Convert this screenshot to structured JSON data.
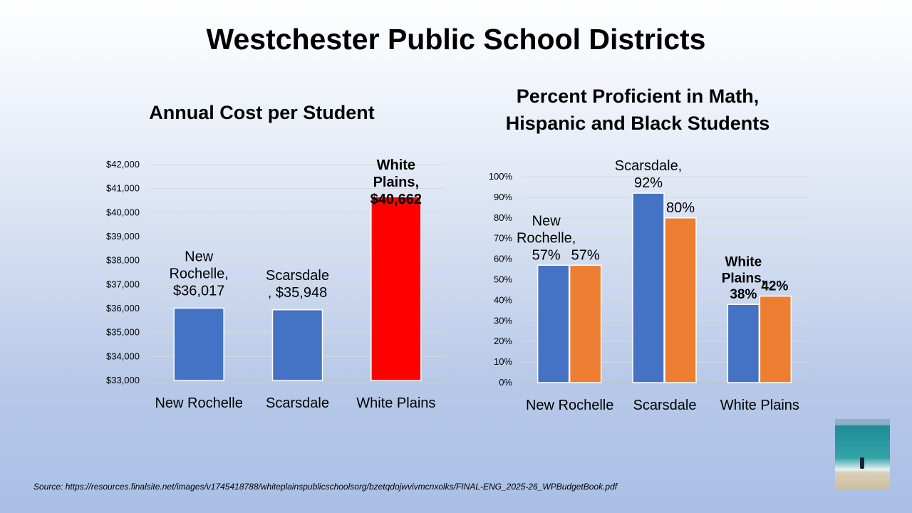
{
  "title": "Westchester Public School Districts",
  "source": "Source: https://resources.finalsite.net/images/v1745418788/whiteplainspublicschoolsorg/bzetqdojwvivmcnxolks/FINAL-ENG_2025-26_WPBudgetBook.pdf",
  "chart_data": [
    {
      "type": "bar",
      "title": "Annual Cost per Student",
      "categories": [
        "New Rochelle",
        "Scarsdale",
        "White Plains"
      ],
      "values": [
        36017,
        35948,
        40662
      ],
      "colors": [
        "#4472c4",
        "#4472c4",
        "#ff0000"
      ],
      "ylim": [
        33000,
        42000
      ],
      "yticks": [
        "$33,000",
        "$34,000",
        "$35,000",
        "$36,000",
        "$37,000",
        "$38,000",
        "$39,000",
        "$40,000",
        "$41,000",
        "$42,000"
      ],
      "data_labels": [
        [
          "New",
          "Rochelle,",
          "$36,017"
        ],
        [
          "Scarsdale",
          ", $35,948"
        ],
        [
          "White",
          "Plains,",
          "$40,662"
        ]
      ],
      "grid": true
    },
    {
      "type": "bar",
      "title": [
        "Percent Proficient in Math,",
        "Hispanic and Black Students"
      ],
      "categories": [
        "New Rochelle",
        "Scarsdale",
        "White Plains"
      ],
      "series": [
        {
          "values": [
            57,
            92,
            38
          ],
          "color": "#4472c4"
        },
        {
          "values": [
            57,
            80,
            42
          ],
          "color": "#ed7d31"
        }
      ],
      "ylim": [
        0,
        100
      ],
      "yticks": [
        "0%",
        "10%",
        "20%",
        "30%",
        "40%",
        "50%",
        "60%",
        "70%",
        "80%",
        "90%",
        "100%"
      ],
      "data_labels": [
        [
          [
            "New",
            "Rochelle,",
            "57%"
          ],
          [
            "Scarsdale,",
            "92%"
          ],
          [
            "White",
            "Plains,",
            "38%"
          ]
        ],
        [
          [
            "57%"
          ],
          [
            "80%"
          ],
          [
            "42%"
          ]
        ]
      ],
      "grid": true
    }
  ]
}
